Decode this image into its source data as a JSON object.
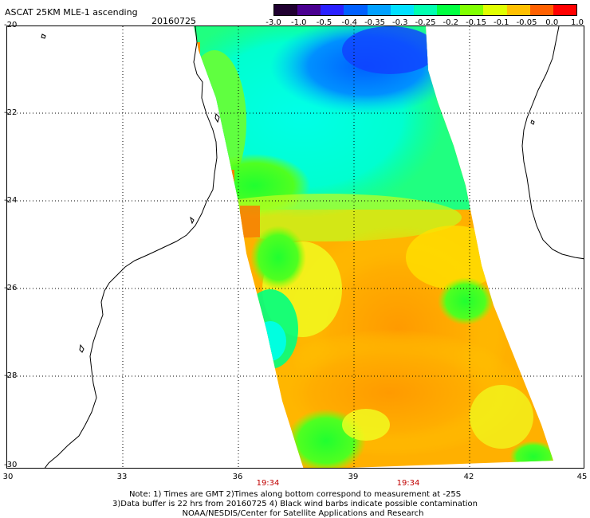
{
  "header": {
    "title": "ASCAT 25KM MLE-1 ascending",
    "date": "20160725"
  },
  "colorbar": {
    "labels": [
      "-3.0",
      "-1.0",
      "-0.5",
      "-0.4",
      "-0.35",
      "-0.3",
      "-0.25",
      "-0.2",
      "-0.15",
      "-0.1",
      "-0.05",
      "0.0",
      "1.0"
    ],
    "colors": [
      "#200030",
      "#4a0090",
      "#2a20ff",
      "#0060ff",
      "#00a0ff",
      "#00e0ff",
      "#00ffb0",
      "#00ff40",
      "#80ff00",
      "#e0ff00",
      "#ffc000",
      "#ff6000",
      "#ff0000"
    ]
  },
  "axes": {
    "lat_labels": [
      "-20",
      "-22",
      "-24",
      "-26",
      "-28",
      "-30"
    ],
    "lon_labels": [
      "30",
      "33",
      "36",
      "39",
      "42",
      "45"
    ],
    "time_labels": [
      "19:34",
      "19:34"
    ]
  },
  "notes": {
    "line1": "Note: 1) Times are GMT 2)Times along bottom correspond to measurement at -25S",
    "line2": "3)Data buffer is 22 hrs from 20160725 4) Black wind barbs indicate possible contamination",
    "line3": "NOAA/NESDIS/Center for Satellite Applications and Research"
  }
}
